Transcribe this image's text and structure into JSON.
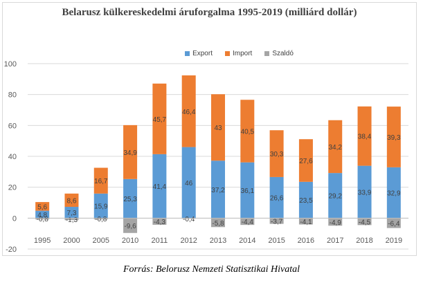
{
  "chart_data": {
    "type": "bar",
    "stacked": true,
    "title": "Belarusz külkereskedelmi áruforgalma 1995-2019 (milliárd dollár)",
    "categories": [
      "1995",
      "2000",
      "2005",
      "2010",
      "2011",
      "2012",
      "2013",
      "2014",
      "2015",
      "2016",
      "2017",
      "2018",
      "2019"
    ],
    "series": [
      {
        "name": "Export",
        "values": [
          4.8,
          7.3,
          15.9,
          25.3,
          41.4,
          46,
          37.2,
          36.1,
          26.6,
          23.5,
          29.2,
          33.9,
          32.9
        ],
        "labels": [
          "4,8",
          "7,3",
          "15,9",
          "25,3",
          "41,4",
          "46",
          "37,2",
          "36,1",
          "26,6",
          "23,5",
          "29,2",
          "33,9",
          "32,9"
        ],
        "color": "#5b9bd5"
      },
      {
        "name": "Import",
        "values": [
          5.6,
          8.6,
          16.7,
          34.9,
          45.7,
          46.4,
          43,
          40.5,
          30.3,
          27.6,
          34.2,
          38.4,
          39.3
        ],
        "labels": [
          "5,6",
          "8,6",
          "16,7",
          "34,9",
          "45,7",
          "46,4",
          "43",
          "40,5",
          "30,3",
          "27,6",
          "34,2",
          "38,4",
          "39,3"
        ],
        "color": "#ed7d31"
      },
      {
        "name": "Szaldó",
        "values": [
          -0.8,
          -1.3,
          -0.8,
          -9.6,
          -4.3,
          -0.4,
          -5.8,
          -4.4,
          -3.7,
          -4.1,
          -4.9,
          -4.5,
          -6.4
        ],
        "labels": [
          "-0,8",
          "-1,3",
          "-0,8",
          "-9,6",
          "-4,3",
          "-0,4",
          "-5,8",
          "-4,4",
          "-3,7",
          "-4,1",
          "-4,9",
          "-4,5",
          "-6,4"
        ],
        "color": "#a5a5a5"
      }
    ],
    "ylim": [
      -20,
      100
    ],
    "yticks": [
      -20,
      0,
      20,
      40,
      60,
      80,
      100
    ],
    "ytick_labels": [
      "-20",
      "0",
      "20",
      "40",
      "60",
      "80",
      "100"
    ],
    "grid": true,
    "legend": "top-center",
    "xlabel": "",
    "ylabel": ""
  },
  "source": "Forrás: Belorusz Nemzeti Statisztikai Hivatal"
}
